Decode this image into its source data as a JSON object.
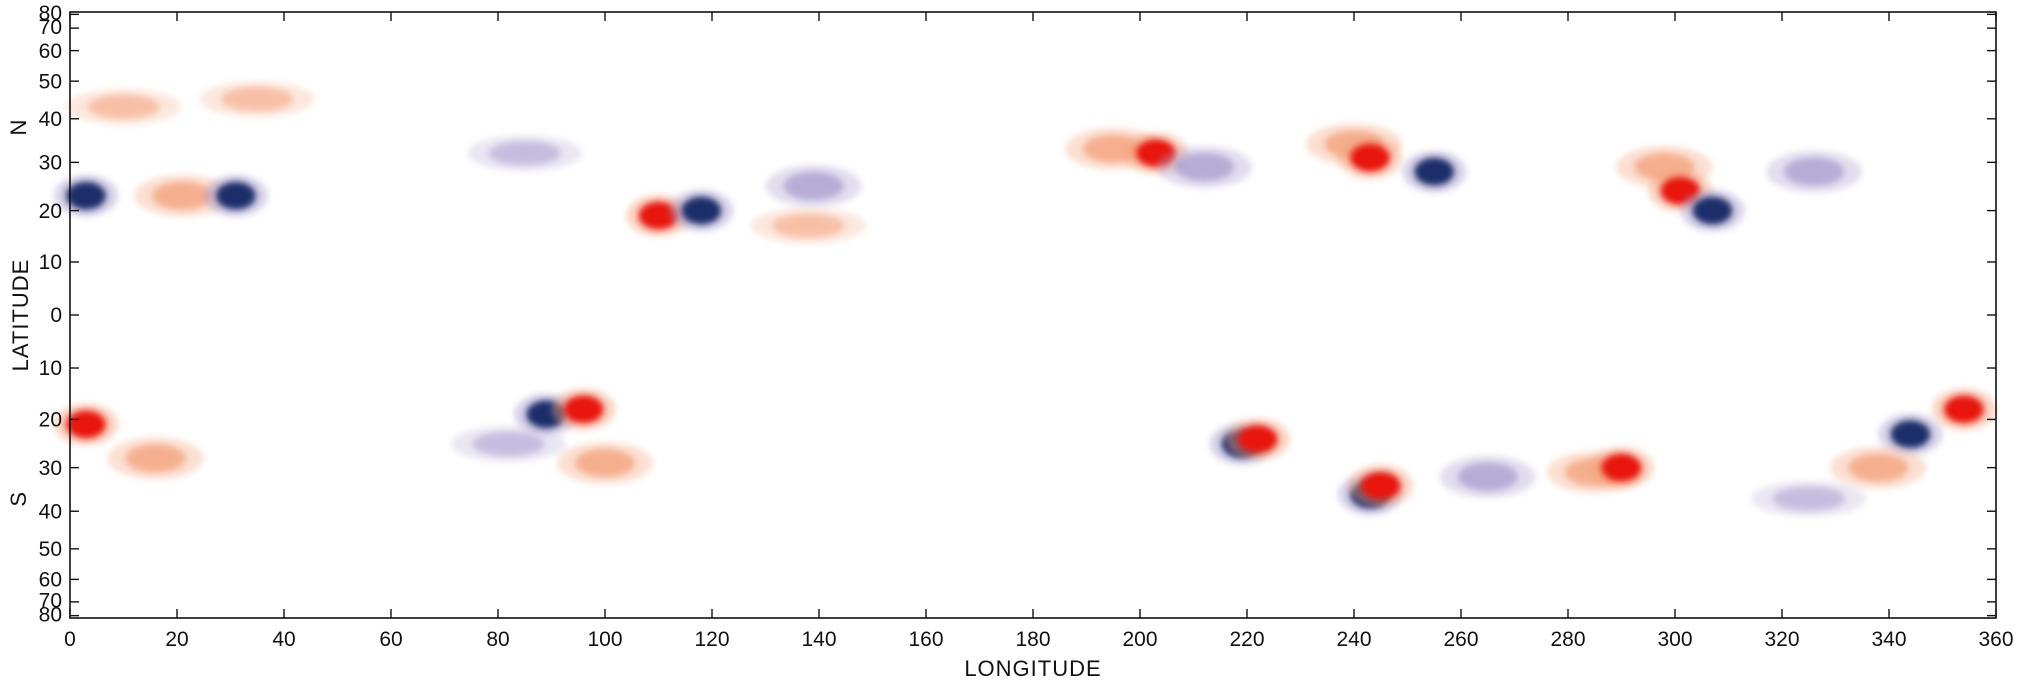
{
  "chart_data": {
    "type": "heatmap",
    "title": "",
    "xlabel": "LONGITUDE",
    "ylabel": "LATITUDE",
    "hemisphere_labels": {
      "north": "N",
      "south": "S"
    },
    "xlim": [
      0,
      360
    ],
    "ylim": [
      -83,
      83
    ],
    "x_ticks": [
      0,
      20,
      40,
      60,
      80,
      100,
      120,
      140,
      160,
      180,
      200,
      220,
      240,
      260,
      280,
      300,
      320,
      340,
      360
    ],
    "x_tick_labels": [
      "0",
      "20",
      "40",
      "60",
      "80",
      "100",
      "120",
      "140",
      "160",
      "180",
      "200",
      "220",
      "240",
      "260",
      "280",
      "300",
      "320",
      "340",
      "360"
    ],
    "y_ticks": [
      80,
      70,
      60,
      50,
      40,
      30,
      20,
      10,
      0,
      -10,
      -20,
      -30,
      -40,
      -50,
      -60,
      -70,
      -80
    ],
    "y_tick_labels": [
      "80",
      "70",
      "60",
      "50",
      "40",
      "30",
      "20",
      "10",
      "0",
      "10",
      "20",
      "30",
      "40",
      "50",
      "60",
      "70",
      "80"
    ],
    "y_axis": "sine of latitude",
    "grid": false,
    "colors": {
      "positive_strong": "#e8190f",
      "positive_weak": "#f4a07a",
      "negative_strong": "#1f2d6b",
      "negative_weak": "#a99ccf"
    },
    "regions": [
      {
        "lon": 3,
        "lat": 23,
        "polarity": "negative",
        "intensity": "strong"
      },
      {
        "lon": 21,
        "lat": 23,
        "polarity": "positive",
        "intensity": "medium"
      },
      {
        "lon": 31,
        "lat": 23,
        "polarity": "negative",
        "intensity": "strong"
      },
      {
        "lon": 10,
        "lat": 43,
        "polarity": "positive",
        "intensity": "weak"
      },
      {
        "lon": 35,
        "lat": 45,
        "polarity": "positive",
        "intensity": "weak"
      },
      {
        "lon": 85,
        "lat": 32,
        "polarity": "negative",
        "intensity": "weak"
      },
      {
        "lon": 110,
        "lat": 19,
        "polarity": "positive",
        "intensity": "strong"
      },
      {
        "lon": 118,
        "lat": 20,
        "polarity": "negative",
        "intensity": "strong"
      },
      {
        "lon": 139,
        "lat": 25,
        "polarity": "negative",
        "intensity": "medium"
      },
      {
        "lon": 138,
        "lat": 17,
        "polarity": "positive",
        "intensity": "weak"
      },
      {
        "lon": 195,
        "lat": 33,
        "polarity": "positive",
        "intensity": "medium"
      },
      {
        "lon": 203,
        "lat": 32,
        "polarity": "positive",
        "intensity": "strong"
      },
      {
        "lon": 212,
        "lat": 29,
        "polarity": "negative",
        "intensity": "medium"
      },
      {
        "lon": 240,
        "lat": 34,
        "polarity": "positive",
        "intensity": "medium"
      },
      {
        "lon": 243,
        "lat": 31,
        "polarity": "positive",
        "intensity": "strong"
      },
      {
        "lon": 255,
        "lat": 28,
        "polarity": "negative",
        "intensity": "strong"
      },
      {
        "lon": 298,
        "lat": 29,
        "polarity": "positive",
        "intensity": "medium"
      },
      {
        "lon": 301,
        "lat": 24,
        "polarity": "positive",
        "intensity": "strong"
      },
      {
        "lon": 307,
        "lat": 20,
        "polarity": "negative",
        "intensity": "strong"
      },
      {
        "lon": 326,
        "lat": 28,
        "polarity": "negative",
        "intensity": "medium"
      },
      {
        "lon": 3,
        "lat": -21,
        "polarity": "positive",
        "intensity": "strong"
      },
      {
        "lon": 16,
        "lat": -28,
        "polarity": "positive",
        "intensity": "medium"
      },
      {
        "lon": 82,
        "lat": -25,
        "polarity": "negative",
        "intensity": "weak"
      },
      {
        "lon": 89,
        "lat": -19,
        "polarity": "negative",
        "intensity": "strong"
      },
      {
        "lon": 96,
        "lat": -18,
        "polarity": "positive",
        "intensity": "strong"
      },
      {
        "lon": 100,
        "lat": -29,
        "polarity": "positive",
        "intensity": "medium"
      },
      {
        "lon": 219,
        "lat": -25,
        "polarity": "negative",
        "intensity": "strong"
      },
      {
        "lon": 222,
        "lat": -24,
        "polarity": "positive",
        "intensity": "strong"
      },
      {
        "lon": 243,
        "lat": -36,
        "polarity": "negative",
        "intensity": "strong"
      },
      {
        "lon": 245,
        "lat": -34,
        "polarity": "positive",
        "intensity": "strong"
      },
      {
        "lon": 265,
        "lat": -32,
        "polarity": "negative",
        "intensity": "medium"
      },
      {
        "lon": 285,
        "lat": -31,
        "polarity": "positive",
        "intensity": "medium"
      },
      {
        "lon": 290,
        "lat": -30,
        "polarity": "positive",
        "intensity": "strong"
      },
      {
        "lon": 344,
        "lat": -23,
        "polarity": "negative",
        "intensity": "strong"
      },
      {
        "lon": 354,
        "lat": -18,
        "polarity": "positive",
        "intensity": "strong"
      },
      {
        "lon": 338,
        "lat": -30,
        "polarity": "positive",
        "intensity": "medium"
      },
      {
        "lon": 325,
        "lat": -37,
        "polarity": "negative",
        "intensity": "weak"
      }
    ]
  }
}
